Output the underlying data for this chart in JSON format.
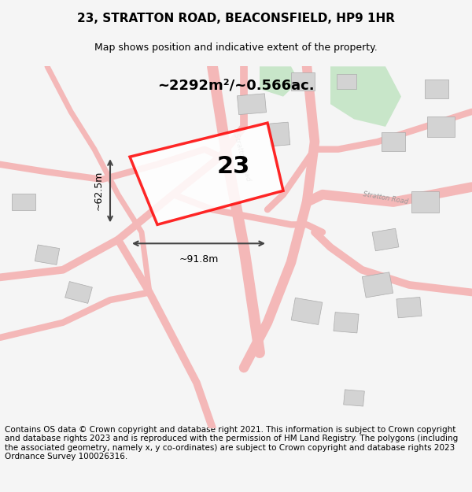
{
  "title": "23, STRATTON ROAD, BEACONSFIELD, HP9 1HR",
  "subtitle": "Map shows position and indicative extent of the property.",
  "footnote": "Contains OS data © Crown copyright and database right 2021. This information is subject to Crown copyright and database rights 2023 and is reproduced with the permission of HM Land Registry. The polygons (including the associated geometry, namely x, y co-ordinates) are subject to Crown copyright and database rights 2023 Ordnance Survey 100026316.",
  "area_text": "~2292m²/~0.566ac.",
  "label_23": "23",
  "dim_width": "~91.8m",
  "dim_height": "~62.5m",
  "bg_color": "#f5f5f5",
  "map_bg": "#ffffff",
  "road_color": "#f4b8b8",
  "red_polygon_color": "#ff0000",
  "building_color": "#d3d3d3",
  "green_area_color": "#c8e6c9",
  "road_line_color": "#ccaaaa",
  "separator_color": "#999999",
  "title_fontsize": 11,
  "subtitle_fontsize": 9,
  "footnote_fontsize": 7.5
}
